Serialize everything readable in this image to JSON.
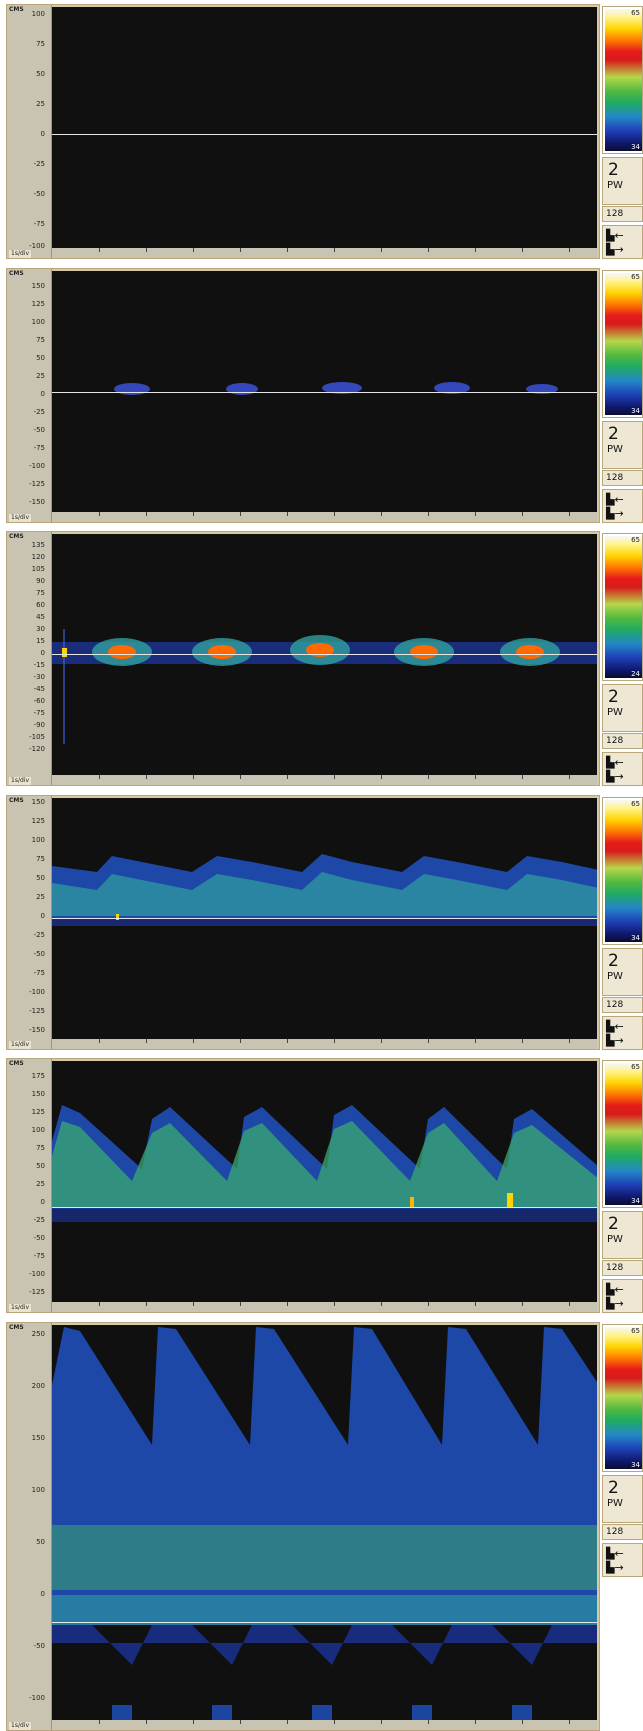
{
  "panels": [
    {
      "unit": "CMS",
      "speed": "1s/div",
      "ticks": [
        "100",
        "75",
        "50",
        "25",
        "0",
        "-25",
        "-50",
        "-75",
        "-100"
      ],
      "colorbar": {
        "top": "65",
        "bottom": "34"
      },
      "gate": "2",
      "mode": "PW",
      "fft": "128"
    },
    {
      "unit": "CMS",
      "speed": "1s/div",
      "ticks": [
        "150",
        "125",
        "100",
        "75",
        "50",
        "25",
        "0",
        "-25",
        "-50",
        "-75",
        "-100",
        "-125",
        "-150"
      ],
      "colorbar": {
        "top": "65",
        "bottom": "34"
      },
      "gate": "2",
      "mode": "PW",
      "fft": "128"
    },
    {
      "unit": "CMS",
      "speed": "1s/div",
      "ticks": [
        "135",
        "120",
        "105",
        "90",
        "75",
        "60",
        "45",
        "30",
        "15",
        "0",
        "-15",
        "-30",
        "-45",
        "-60",
        "-75",
        "-90",
        "-105",
        "-120"
      ],
      "colorbar": {
        "top": "65",
        "bottom": "24"
      },
      "gate": "2",
      "mode": "PW",
      "fft": "128"
    },
    {
      "unit": "CMS",
      "speed": "1s/div",
      "ticks": [
        "150",
        "125",
        "100",
        "75",
        "50",
        "25",
        "0",
        "-25",
        "-50",
        "-75",
        "-100",
        "-125",
        "-150"
      ],
      "colorbar": {
        "top": "65",
        "bottom": "34"
      },
      "gate": "2",
      "mode": "PW",
      "fft": "128"
    },
    {
      "unit": "CMS",
      "speed": "1s/div",
      "ticks": [
        "175",
        "150",
        "125",
        "100",
        "75",
        "50",
        "25",
        "0",
        "-25",
        "-50",
        "-75",
        "-100",
        "-125"
      ],
      "colorbar": {
        "top": "65",
        "bottom": "34"
      },
      "gate": "2",
      "mode": "PW",
      "fft": "128"
    },
    {
      "unit": "CMS",
      "speed": "1s/div",
      "ticks": [
        "250",
        "200",
        "150",
        "100",
        "50",
        "0",
        "-50",
        "-100"
      ],
      "colorbar": {
        "top": "65",
        "bottom": "34"
      },
      "gate": "2",
      "mode": "PW",
      "fft": "128"
    }
  ],
  "colors": {
    "frame": "#d8c9a5",
    "background": "#101010",
    "baseline": "#e6e6e6"
  }
}
